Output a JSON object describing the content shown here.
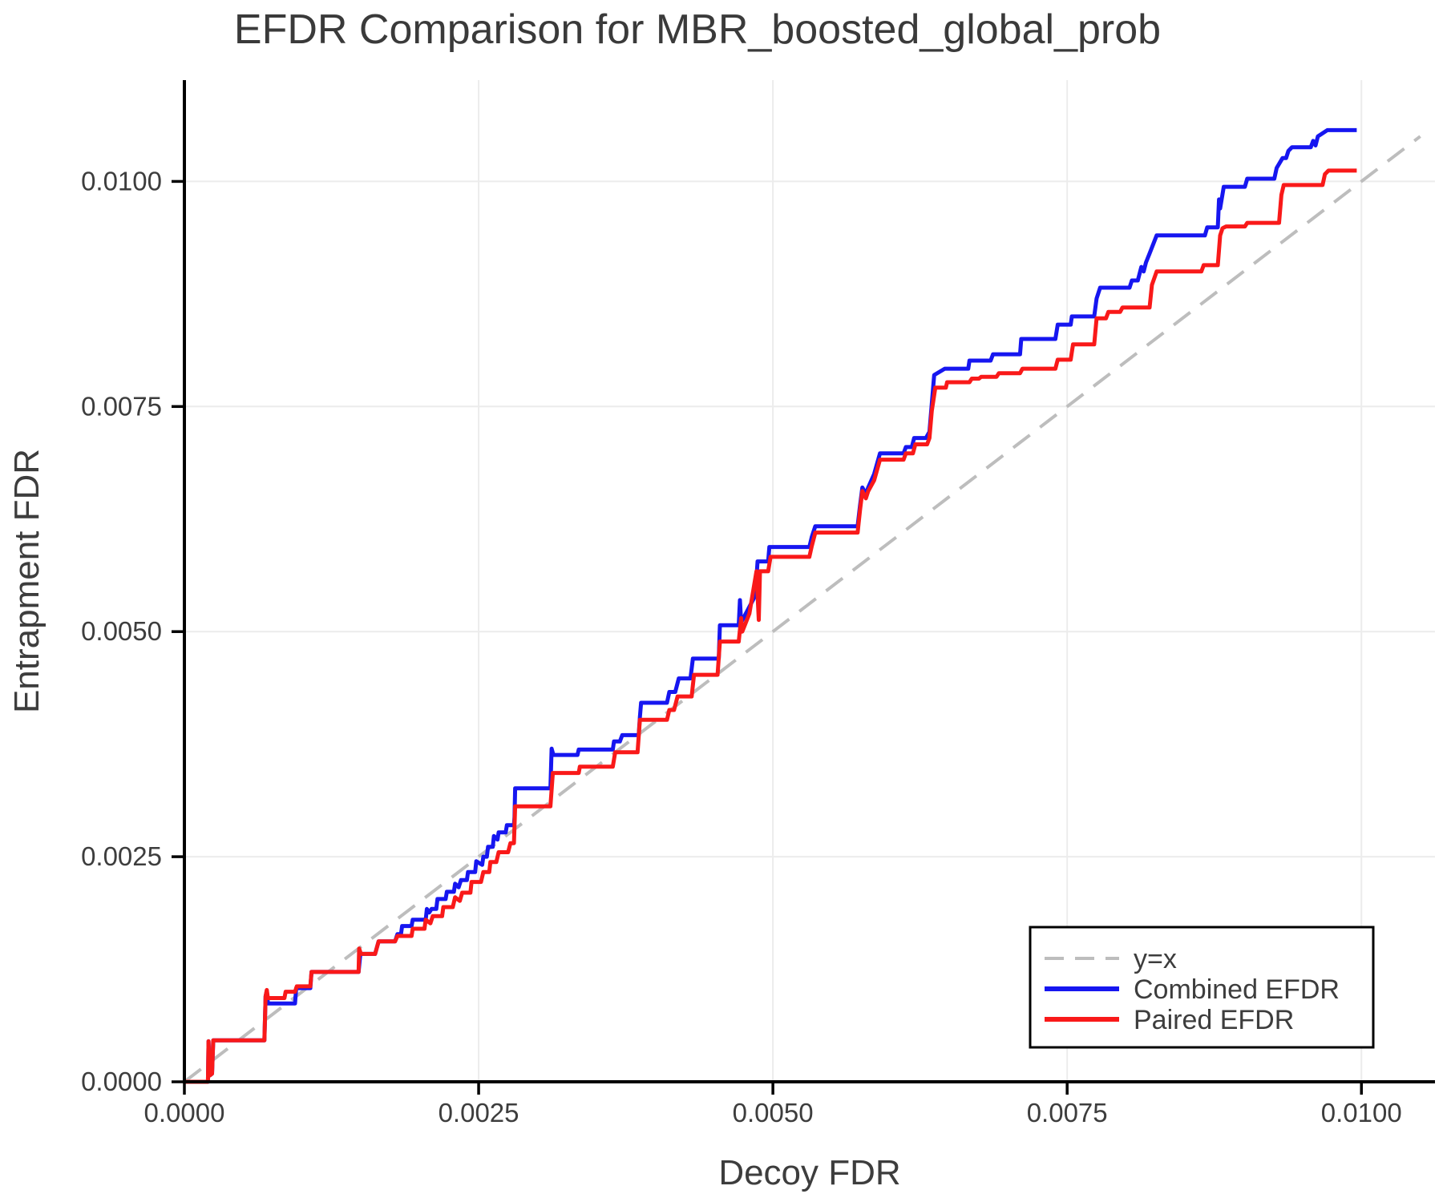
{
  "page": {
    "background": "#ffffff"
  },
  "chart_data": {
    "type": "line",
    "title": "EFDR Comparison for MBR_boosted_global_prob",
    "xlabel": "Decoy FDR",
    "ylabel": "Entrapment FDR",
    "xlim": [
      0,
      0.010625
    ],
    "ylim": [
      0,
      0.011125
    ],
    "xticks": {
      "values": [
        0.0,
        0.0025,
        0.005,
        0.0075,
        0.01
      ],
      "labels": [
        "0.0000",
        "0.0025",
        "0.0050",
        "0.0075",
        "0.0100"
      ]
    },
    "yticks": {
      "values": [
        0.0,
        0.0025,
        0.005,
        0.0075,
        0.01
      ],
      "labels": [
        "0.0000",
        "0.0025",
        "0.0050",
        "0.0075",
        "0.0100"
      ]
    },
    "grid": true,
    "grid_color": "#ececec",
    "axis_color": "#000000",
    "text_color": "#3d3d3d",
    "legend": {
      "position": "lower right"
    },
    "series": [
      {
        "name": "y=x",
        "style": "dashed",
        "color": "#bdbdbd",
        "points": [
          [
            0.0,
            0.0
          ],
          [
            0.0105,
            0.0105
          ]
        ]
      },
      {
        "name": "Combined EFDR",
        "style": "solid",
        "color": "#1616f0",
        "points": [
          [
            0.0,
            0.0
          ],
          [
            0.0002,
            0.0
          ],
          [
            0.000205,
            0.00045
          ],
          [
            0.000215,
            7e-05
          ],
          [
            0.000235,
            9e-05
          ],
          [
            0.000245,
            0.00046
          ],
          [
            0.00068,
            0.00046
          ],
          [
            0.00069,
            0.00095
          ],
          [
            0.0007,
            0.00101
          ],
          [
            0.00071,
            0.00087
          ],
          [
            0.00094,
            0.00087
          ],
          [
            0.00095,
            0.00104
          ],
          [
            0.00107,
            0.00104
          ],
          [
            0.00108,
            0.00122
          ],
          [
            0.00148,
            0.00122
          ],
          [
            0.001495,
            0.00142
          ],
          [
            0.00162,
            0.00142
          ],
          [
            0.00165,
            0.00156
          ],
          [
            0.00179,
            0.00156
          ],
          [
            0.00181,
            0.00164
          ],
          [
            0.00184,
            0.00164
          ],
          [
            0.00185,
            0.00173
          ],
          [
            0.00193,
            0.00173
          ],
          [
            0.00194,
            0.0018
          ],
          [
            0.00205,
            0.0018
          ],
          [
            0.00206,
            0.00192
          ],
          [
            0.00208,
            0.00188
          ],
          [
            0.0021,
            0.00192
          ],
          [
            0.00214,
            0.00192
          ],
          [
            0.00215,
            0.00203
          ],
          [
            0.00222,
            0.00203
          ],
          [
            0.00223,
            0.00211
          ],
          [
            0.00229,
            0.00211
          ],
          [
            0.0023,
            0.0022
          ],
          [
            0.00233,
            0.00216
          ],
          [
            0.00235,
            0.00224
          ],
          [
            0.0024,
            0.00224
          ],
          [
            0.00241,
            0.00233
          ],
          [
            0.00247,
            0.00233
          ],
          [
            0.00248,
            0.00245
          ],
          [
            0.00253,
            0.00241
          ],
          [
            0.00254,
            0.0025
          ],
          [
            0.00257,
            0.0025
          ],
          [
            0.00258,
            0.00261
          ],
          [
            0.00262,
            0.00261
          ],
          [
            0.00263,
            0.00273
          ],
          [
            0.00266,
            0.00269
          ],
          [
            0.00267,
            0.00277
          ],
          [
            0.00273,
            0.00277
          ],
          [
            0.00274,
            0.00285
          ],
          [
            0.0028,
            0.00285
          ],
          [
            0.002805,
            0.00294
          ],
          [
            0.00281,
            0.00326
          ],
          [
            0.00311,
            0.00326
          ],
          [
            0.00312,
            0.0037
          ],
          [
            0.003135,
            0.00363
          ],
          [
            0.00334,
            0.00363
          ],
          [
            0.00335,
            0.00369
          ],
          [
            0.00364,
            0.00369
          ],
          [
            0.00365,
            0.00378
          ],
          [
            0.0037,
            0.00378
          ],
          [
            0.00372,
            0.00385
          ],
          [
            0.00386,
            0.00385
          ],
          [
            0.00387,
            0.00405
          ],
          [
            0.00388,
            0.00421
          ],
          [
            0.0041,
            0.00421
          ],
          [
            0.00412,
            0.00433
          ],
          [
            0.00417,
            0.00433
          ],
          [
            0.0042,
            0.00448
          ],
          [
            0.0043,
            0.00448
          ],
          [
            0.00432,
            0.0047
          ],
          [
            0.00454,
            0.0047
          ],
          [
            0.00455,
            0.00507
          ],
          [
            0.00471,
            0.00507
          ],
          [
            0.00472,
            0.00535
          ],
          [
            0.00473,
            0.0051
          ],
          [
            0.00475,
            0.00515
          ],
          [
            0.00485,
            0.0054
          ],
          [
            0.00487,
            0.00578
          ],
          [
            0.00496,
            0.00578
          ],
          [
            0.00497,
            0.00594
          ],
          [
            0.00531,
            0.00594
          ],
          [
            0.00533,
            0.00605
          ],
          [
            0.00536,
            0.00617
          ],
          [
            0.00572,
            0.00617
          ],
          [
            0.00574,
            0.0064
          ],
          [
            0.00576,
            0.0066
          ],
          [
            0.00579,
            0.00653
          ],
          [
            0.00581,
            0.0066
          ],
          [
            0.00586,
            0.00675
          ],
          [
            0.00591,
            0.00698
          ],
          [
            0.00611,
            0.00698
          ],
          [
            0.00613,
            0.00705
          ],
          [
            0.00618,
            0.00705
          ],
          [
            0.0062,
            0.00715
          ],
          [
            0.0063,
            0.00715
          ],
          [
            0.00633,
            0.00722
          ],
          [
            0.00637,
            0.00785
          ],
          [
            0.00646,
            0.00792
          ],
          [
            0.00666,
            0.00792
          ],
          [
            0.00667,
            0.00801
          ],
          [
            0.00685,
            0.00801
          ],
          [
            0.00687,
            0.00808
          ],
          [
            0.0071,
            0.00808
          ],
          [
            0.00711,
            0.00825
          ],
          [
            0.0074,
            0.00825
          ],
          [
            0.00742,
            0.00841
          ],
          [
            0.00753,
            0.00841
          ],
          [
            0.00754,
            0.0085
          ],
          [
            0.00773,
            0.0085
          ],
          [
            0.00775,
            0.0087
          ],
          [
            0.00778,
            0.00882
          ],
          [
            0.00803,
            0.00882
          ],
          [
            0.00805,
            0.0089
          ],
          [
            0.0081,
            0.0089
          ],
          [
            0.00813,
            0.00905
          ],
          [
            0.00815,
            0.009
          ],
          [
            0.00817,
            0.0091
          ],
          [
            0.0082,
            0.0092
          ],
          [
            0.00826,
            0.0094
          ],
          [
            0.00867,
            0.0094
          ],
          [
            0.00869,
            0.00949
          ],
          [
            0.00878,
            0.00949
          ],
          [
            0.00879,
            0.0098
          ],
          [
            0.0088,
            0.0097
          ],
          [
            0.00883,
            0.00994
          ],
          [
            0.00901,
            0.00994
          ],
          [
            0.00903,
            0.01003
          ],
          [
            0.00926,
            0.01003
          ],
          [
            0.00928,
            0.01015
          ],
          [
            0.00933,
            0.01026
          ],
          [
            0.00936,
            0.01026
          ],
          [
            0.00938,
            0.01034
          ],
          [
            0.00941,
            0.01038
          ],
          [
            0.00957,
            0.01038
          ],
          [
            0.00959,
            0.01045
          ],
          [
            0.00961,
            0.0104
          ],
          [
            0.00963,
            0.0105
          ],
          [
            0.00971,
            0.01057
          ],
          [
            0.00996,
            0.01057
          ]
        ]
      },
      {
        "name": "Paired EFDR",
        "style": "solid",
        "color": "#f91919",
        "points": [
          [
            0.0,
            0.0
          ],
          [
            0.0002,
            0.0
          ],
          [
            0.000205,
            0.00045
          ],
          [
            0.000215,
            7e-05
          ],
          [
            0.000235,
            9e-05
          ],
          [
            0.000245,
            0.00046
          ],
          [
            0.00068,
            0.00046
          ],
          [
            0.00069,
            0.00095
          ],
          [
            0.0007,
            0.00102
          ],
          [
            0.00071,
            0.00093
          ],
          [
            0.00085,
            0.00093
          ],
          [
            0.00086,
            0.001
          ],
          [
            0.00094,
            0.001
          ],
          [
            0.000955,
            0.00106
          ],
          [
            0.00107,
            0.00106
          ],
          [
            0.00108,
            0.00122
          ],
          [
            0.00148,
            0.00122
          ],
          [
            0.001485,
            0.00148
          ],
          [
            0.0015,
            0.00142
          ],
          [
            0.00162,
            0.00142
          ],
          [
            0.00165,
            0.00156
          ],
          [
            0.00179,
            0.00156
          ],
          [
            0.00181,
            0.00162
          ],
          [
            0.00193,
            0.00162
          ],
          [
            0.00194,
            0.0017
          ],
          [
            0.00204,
            0.0017
          ],
          [
            0.00205,
            0.0018
          ],
          [
            0.00209,
            0.00176
          ],
          [
            0.00211,
            0.00184
          ],
          [
            0.00219,
            0.00184
          ],
          [
            0.0022,
            0.00194
          ],
          [
            0.00228,
            0.00194
          ],
          [
            0.0023,
            0.00205
          ],
          [
            0.00234,
            0.00201
          ],
          [
            0.00236,
            0.0021
          ],
          [
            0.00243,
            0.0021
          ],
          [
            0.00244,
            0.00222
          ],
          [
            0.00252,
            0.00222
          ],
          [
            0.00254,
            0.00233
          ],
          [
            0.00259,
            0.00233
          ],
          [
            0.0026,
            0.00244
          ],
          [
            0.00265,
            0.00244
          ],
          [
            0.00267,
            0.00255
          ],
          [
            0.00275,
            0.00255
          ],
          [
            0.00277,
            0.00265
          ],
          [
            0.0028,
            0.00265
          ],
          [
            0.00281,
            0.00306
          ],
          [
            0.00311,
            0.00306
          ],
          [
            0.00313,
            0.00343
          ],
          [
            0.00335,
            0.00343
          ],
          [
            0.00336,
            0.0035
          ],
          [
            0.00364,
            0.0035
          ],
          [
            0.00366,
            0.00366
          ],
          [
            0.00385,
            0.00366
          ],
          [
            0.00387,
            0.00402
          ],
          [
            0.0041,
            0.00402
          ],
          [
            0.00412,
            0.00413
          ],
          [
            0.00416,
            0.00413
          ],
          [
            0.00419,
            0.00428
          ],
          [
            0.00431,
            0.00428
          ],
          [
            0.00433,
            0.00452
          ],
          [
            0.00453,
            0.00452
          ],
          [
            0.00455,
            0.00489
          ],
          [
            0.00471,
            0.00489
          ],
          [
            0.00473,
            0.00515
          ],
          [
            0.00474,
            0.005
          ],
          [
            0.0048,
            0.0052
          ],
          [
            0.00486,
            0.00567
          ],
          [
            0.00488,
            0.00513
          ],
          [
            0.00489,
            0.00567
          ],
          [
            0.00496,
            0.00567
          ],
          [
            0.00498,
            0.00583
          ],
          [
            0.00531,
            0.00583
          ],
          [
            0.00533,
            0.00595
          ],
          [
            0.00536,
            0.0061
          ],
          [
            0.00572,
            0.0061
          ],
          [
            0.00574,
            0.00635
          ],
          [
            0.00576,
            0.00656
          ],
          [
            0.00579,
            0.00648
          ],
          [
            0.00581,
            0.00656
          ],
          [
            0.00586,
            0.00668
          ],
          [
            0.00591,
            0.00691
          ],
          [
            0.00611,
            0.00691
          ],
          [
            0.00613,
            0.00698
          ],
          [
            0.00619,
            0.00698
          ],
          [
            0.00621,
            0.00708
          ],
          [
            0.00631,
            0.00708
          ],
          [
            0.00633,
            0.00715
          ],
          [
            0.00635,
            0.00745
          ],
          [
            0.00638,
            0.00771
          ],
          [
            0.00647,
            0.00771
          ],
          [
            0.00648,
            0.00777
          ],
          [
            0.00667,
            0.00777
          ],
          [
            0.00669,
            0.00781
          ],
          [
            0.00675,
            0.00781
          ],
          [
            0.00677,
            0.00783
          ],
          [
            0.0069,
            0.00783
          ],
          [
            0.00692,
            0.00787
          ],
          [
            0.0071,
            0.00787
          ],
          [
            0.00712,
            0.00792
          ],
          [
            0.0074,
            0.00792
          ],
          [
            0.00742,
            0.00802
          ],
          [
            0.00753,
            0.00802
          ],
          [
            0.00755,
            0.00819
          ],
          [
            0.00773,
            0.00819
          ],
          [
            0.00775,
            0.00848
          ],
          [
            0.00783,
            0.00848
          ],
          [
            0.00785,
            0.00855
          ],
          [
            0.00795,
            0.00855
          ],
          [
            0.00797,
            0.0086
          ],
          [
            0.0082,
            0.0086
          ],
          [
            0.00822,
            0.00885
          ],
          [
            0.00826,
            0.009
          ],
          [
            0.00864,
            0.009
          ],
          [
            0.00866,
            0.00907
          ],
          [
            0.00878,
            0.00907
          ],
          [
            0.0088,
            0.0094
          ],
          [
            0.00882,
            0.00948
          ],
          [
            0.00885,
            0.0095
          ],
          [
            0.00901,
            0.0095
          ],
          [
            0.00903,
            0.00954
          ],
          [
            0.0093,
            0.00954
          ],
          [
            0.00932,
            0.00985
          ],
          [
            0.00934,
            0.00996
          ],
          [
            0.00967,
            0.00996
          ],
          [
            0.00969,
            0.01008
          ],
          [
            0.00972,
            0.01012
          ],
          [
            0.00996,
            0.01012
          ]
        ]
      }
    ]
  }
}
